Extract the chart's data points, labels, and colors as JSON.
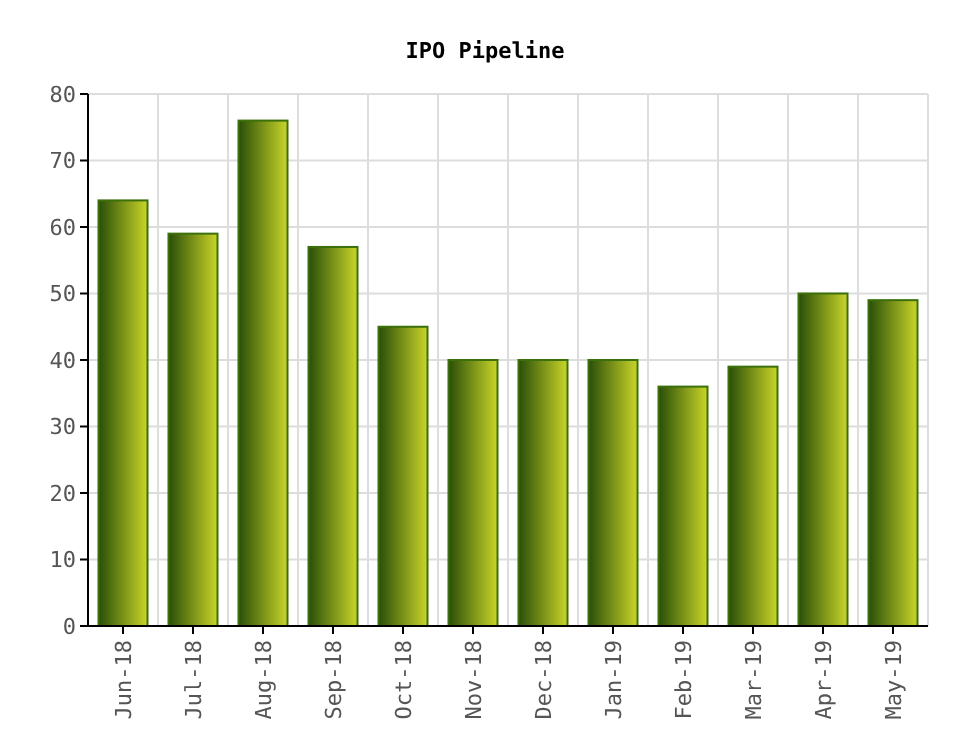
{
  "chart_data": {
    "type": "bar",
    "title": "IPO Pipeline",
    "categories": [
      "Jun-18",
      "Jul-18",
      "Aug-18",
      "Sep-18",
      "Oct-18",
      "Nov-18",
      "Dec-18",
      "Jan-19",
      "Feb-19",
      "Mar-19",
      "Apr-19",
      "May-19"
    ],
    "values": [
      64,
      59,
      76,
      57,
      45,
      40,
      40,
      40,
      36,
      39,
      50,
      49
    ],
    "color": "#3b700b",
    "ylim": [
      0,
      80
    ],
    "yticks": [
      0,
      10,
      20,
      30,
      40,
      50,
      60,
      70,
      80
    ],
    "grid": true
  }
}
